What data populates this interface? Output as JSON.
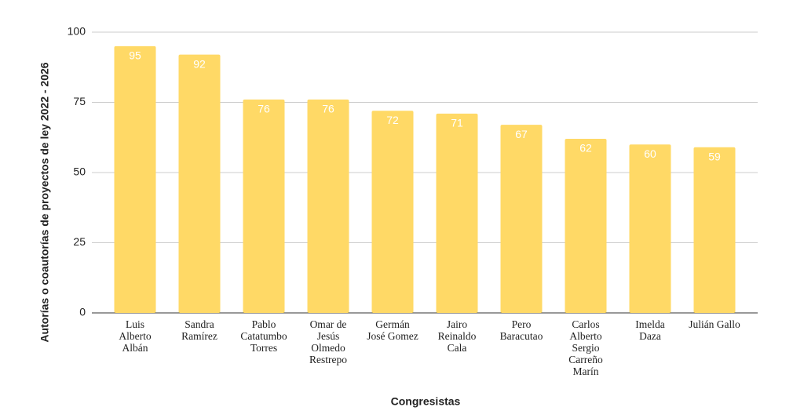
{
  "chart_data": {
    "type": "bar",
    "y_axis_label": "Autorías o coautorías de proyectos de ley 2022 - 2026",
    "x_axis_label": "Congresistas",
    "categories": [
      "Luis Alberto Albán",
      "Sandra Ramírez",
      "Pablo Catatumbo Torres",
      "Omar de Jesús Olmedo Restrepo",
      "Germán José Gomez",
      "Jairo Reinaldo Cala",
      "Pero Baracutao",
      "Carlos Alberto Sergio Carreño Marín",
      "Imelda Daza",
      "Julián Gallo"
    ],
    "values": [
      95,
      92,
      76,
      76,
      72,
      71,
      67,
      62,
      60,
      59
    ],
    "color": "#ffd966",
    "ylim": [
      0,
      100
    ],
    "yticks": [
      0,
      25,
      50,
      75,
      100
    ],
    "grid": true
  }
}
